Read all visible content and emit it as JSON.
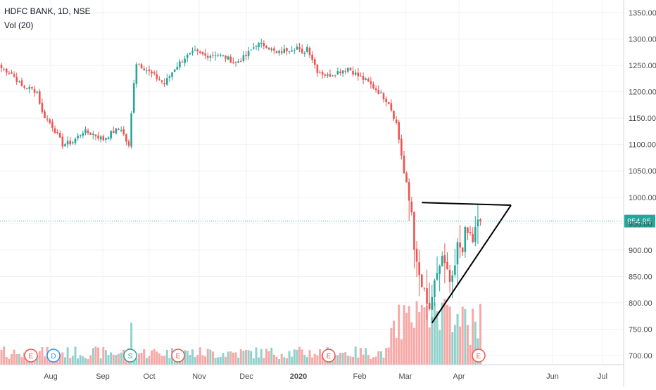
{
  "header": {
    "symbol_line": "HDFC BANK, 1D, NSE",
    "volume_label": "Vol (20)"
  },
  "colors": {
    "up": "#26a69a",
    "down": "#ef5350",
    "vol_up": "#92d2cc",
    "vol_down": "#f7a9a7",
    "grid": "#eef1f5",
    "axis_text": "#4a4a4a",
    "price_line": "#26a69a",
    "badge_earnings": "#ef5350",
    "badge_dividend": "#2196f3",
    "badge_split": "#26a69a",
    "trendline": "#000000"
  },
  "chart_data": {
    "type": "candlestick",
    "title": "",
    "xlabel": "",
    "ylabel": "",
    "ylim": [
      690,
      1380
    ],
    "grid": true,
    "y_ticks": [
      "700.00",
      "750.00",
      "800.00",
      "850.00",
      "900.00",
      "950.00",
      "1000.00",
      "1050.00",
      "1100.00",
      "1150.00",
      "1200.00",
      "1250.00",
      "1300.00",
      "1350.00"
    ],
    "y_tick_values": [
      700,
      750,
      800,
      850,
      900,
      950,
      1000,
      1050,
      1100,
      1150,
      1200,
      1250,
      1300,
      1350
    ],
    "x_ticks": [
      "Aug",
      "Sep",
      "Oct",
      "Nov",
      "Dec",
      "2020",
      "Feb",
      "Mar",
      "Apr",
      "Jun",
      "Jul"
    ],
    "last_price": 954.95,
    "last_price_label": "954.95",
    "events": [
      {
        "letter": "E",
        "kind": "earnings",
        "month": "Jul"
      },
      {
        "letter": "D",
        "kind": "dividend",
        "month": "Jul"
      },
      {
        "letter": "S",
        "kind": "split",
        "month": "Sep"
      },
      {
        "letter": "E",
        "kind": "earnings",
        "month": "Oct"
      },
      {
        "letter": "E",
        "kind": "earnings",
        "month": "Jan"
      },
      {
        "letter": "E",
        "kind": "earnings",
        "month": "Apr"
      }
    ],
    "anchor_points": [
      [
        0,
        1245
      ],
      [
        4,
        1235
      ],
      [
        8,
        1210
      ],
      [
        12,
        1205
      ],
      [
        14,
        1200
      ],
      [
        16,
        1160
      ],
      [
        20,
        1135
      ],
      [
        24,
        1100
      ],
      [
        28,
        1105
      ],
      [
        32,
        1125
      ],
      [
        36,
        1120
      ],
      [
        40,
        1110
      ],
      [
        44,
        1125
      ],
      [
        47,
        1130
      ],
      [
        50,
        1095
      ],
      [
        52,
        1220
      ],
      [
        53,
        1255
      ],
      [
        56,
        1245
      ],
      [
        60,
        1230
      ],
      [
        64,
        1215
      ],
      [
        68,
        1245
      ],
      [
        72,
        1265
      ],
      [
        76,
        1275
      ],
      [
        80,
        1268
      ],
      [
        84,
        1272
      ],
      [
        88,
        1265
      ],
      [
        92,
        1255
      ],
      [
        96,
        1268
      ],
      [
        100,
        1290
      ],
      [
        104,
        1288
      ],
      [
        108,
        1272
      ],
      [
        112,
        1280
      ],
      [
        116,
        1285
      ],
      [
        118,
        1270
      ],
      [
        120,
        1285
      ],
      [
        124,
        1240
      ],
      [
        128,
        1230
      ],
      [
        132,
        1238
      ],
      [
        136,
        1245
      ],
      [
        140,
        1230
      ],
      [
        144,
        1218
      ],
      [
        148,
        1200
      ],
      [
        152,
        1180
      ],
      [
        155,
        1140
      ],
      [
        157,
        1080
      ],
      [
        159,
        1010
      ],
      [
        161,
        975
      ],
      [
        163,
        860
      ],
      [
        165,
        830
      ],
      [
        167,
        790
      ],
      [
        169,
        790
      ],
      [
        171,
        860
      ],
      [
        173,
        880
      ],
      [
        175,
        845
      ],
      [
        177,
        830
      ],
      [
        179,
        900
      ],
      [
        181,
        915
      ],
      [
        183,
        930
      ],
      [
        185,
        920
      ],
      [
        187,
        945
      ],
      [
        188,
        955
      ]
    ],
    "trendlines": [
      {
        "from": [
          165,
          990
        ],
        "to": [
          200,
          985
        ]
      },
      {
        "from": [
          200,
          985
        ],
        "to": [
          169,
          762
        ]
      }
    ]
  }
}
